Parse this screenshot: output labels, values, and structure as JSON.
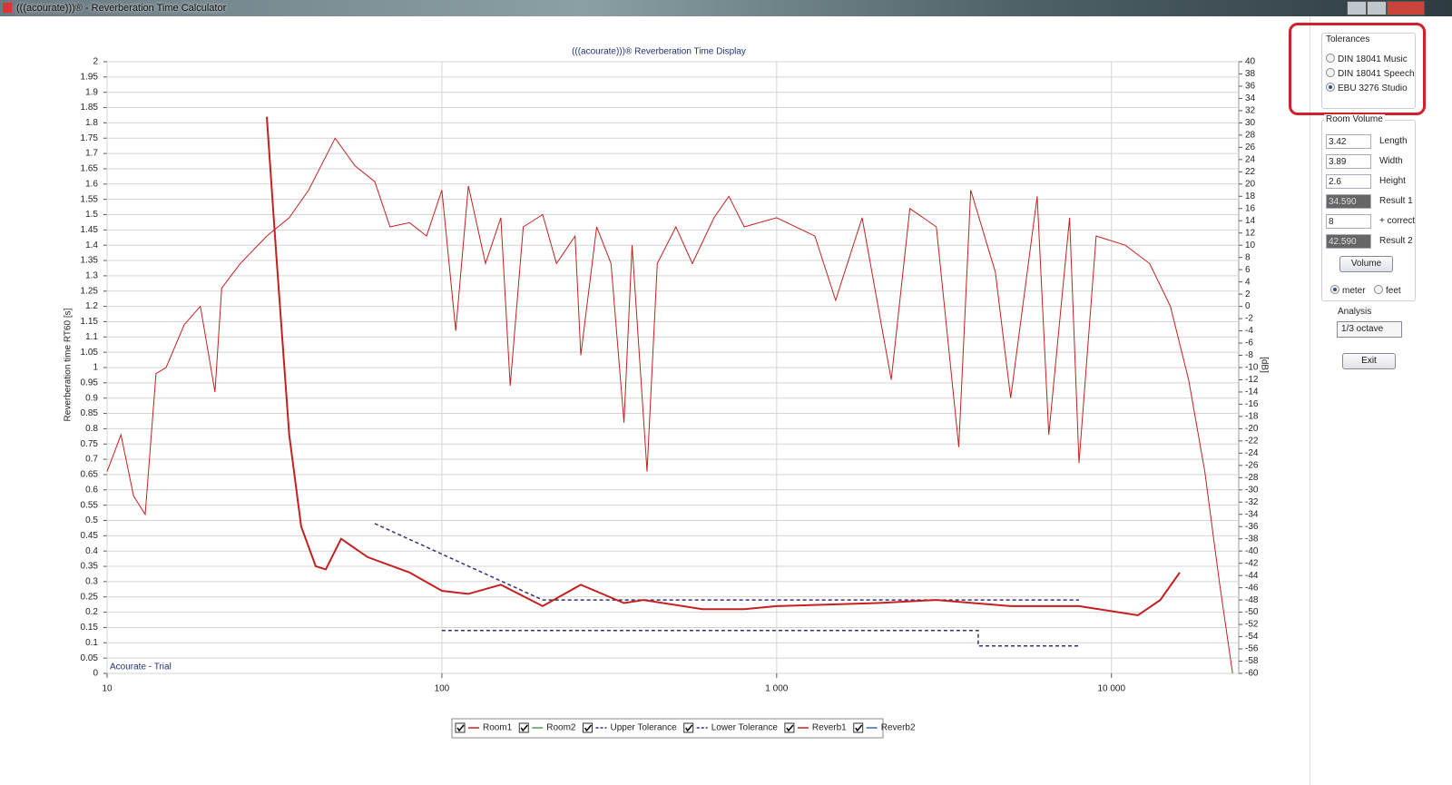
{
  "window": {
    "title": "(((acourate)))® - Reverberation Time Calculator"
  },
  "chart_data": {
    "type": "line",
    "title": "(((acourate)))® Reverberation Time Display",
    "y_label": "Reverberation time RT60 [s]",
    "y2_label": "[dB]",
    "annotation": "Acourate - Trial",
    "x_log": true,
    "grid": true,
    "xlim": [
      10,
      24000
    ],
    "xticks": [
      10,
      100,
      {
        "value": 1000,
        "label": "1 000"
      },
      {
        "value": 10000,
        "label": "10 000"
      }
    ],
    "ylim": [
      0,
      2
    ],
    "yticks": [
      0,
      0.05,
      0.1,
      0.15,
      0.2,
      0.25,
      0.3,
      0.35,
      0.4,
      0.45,
      0.5,
      0.55,
      0.6,
      0.65,
      0.7,
      0.75,
      0.8,
      0.85,
      0.9,
      0.95,
      1,
      1.05,
      1.1,
      1.15,
      1.2,
      1.25,
      1.3,
      1.35,
      1.4,
      1.45,
      1.5,
      1.55,
      1.6,
      1.65,
      1.7,
      1.75,
      1.8,
      1.85,
      1.9,
      1.95,
      2
    ],
    "y2lim": [
      -60,
      40
    ],
    "y2ticks": [
      -60,
      -58,
      -56,
      -54,
      -52,
      -50,
      -48,
      -46,
      -44,
      -42,
      -40,
      -38,
      -36,
      -34,
      -32,
      -30,
      -28,
      -26,
      -24,
      -22,
      -20,
      -18,
      -16,
      -14,
      -12,
      -10,
      -8,
      -6,
      -4,
      -2,
      0,
      2,
      4,
      6,
      8,
      10,
      12,
      14,
      16,
      18,
      20,
      22,
      24,
      26,
      28,
      30,
      32,
      34,
      36,
      38,
      40
    ],
    "series": [
      {
        "name": "Room1",
        "color": "#c42020",
        "width": 1,
        "dash": false,
        "axis": "y2",
        "x": [
          10,
          11,
          12,
          13,
          14,
          15,
          17,
          19,
          21,
          22,
          25,
          30,
          35,
          40,
          48,
          55,
          63,
          70,
          80,
          90,
          100,
          110,
          120,
          135,
          150,
          160,
          175,
          200,
          220,
          250,
          260,
          290,
          320,
          350,
          370,
          410,
          440,
          500,
          560,
          650,
          720,
          800,
          1000,
          1300,
          1500,
          1800,
          2200,
          2500,
          3000,
          3500,
          3800,
          4500,
          5000,
          6000,
          6500,
          7500,
          8000,
          9000,
          11000,
          13000,
          15000,
          17000,
          19000,
          21000,
          23000
        ],
        "values": [
          -27,
          -21,
          -31,
          -34,
          -11,
          -10,
          -3,
          0,
          -14,
          3,
          7,
          11.5,
          14.5,
          19,
          27.5,
          23,
          20.4,
          13,
          13.7,
          11.5,
          19,
          -4,
          19.7,
          7,
          14.5,
          -13,
          13,
          15,
          7,
          11.5,
          -8,
          13,
          7,
          -19,
          10,
          -27,
          7,
          13,
          7,
          14.5,
          18,
          13,
          14.5,
          11.5,
          1,
          14.5,
          -12,
          16,
          13,
          -23,
          19,
          5.6,
          -15,
          18,
          -21,
          14.5,
          -25.6,
          11.5,
          10,
          7,
          0,
          -12,
          -27,
          -45,
          -60
        ]
      },
      {
        "name": "Room2",
        "color": "#5a9a5a",
        "width": 1,
        "dash": false,
        "axis": "y2",
        "x": [],
        "values": []
      },
      {
        "name": "Upper Tolerance",
        "color": "#33307a",
        "width": 1.5,
        "dash": true,
        "x": [
          63,
          200,
          8000
        ],
        "values": [
          0.49,
          0.24,
          0.24
        ]
      },
      {
        "name": "Lower Tolerance",
        "color": "#33307a",
        "width": 1.5,
        "dash": true,
        "x": [
          100,
          4000,
          4000,
          8000
        ],
        "values": [
          0.14,
          0.14,
          0.09,
          0.09
        ]
      },
      {
        "name": "Reverb1",
        "color": "#c42020",
        "width": 2,
        "dash": false,
        "x": [
          30,
          32,
          35,
          38,
          42,
          45,
          50,
          60,
          80,
          100,
          120,
          150,
          200,
          260,
          350,
          400,
          600,
          800,
          1000,
          2000,
          3000,
          5000,
          8000,
          12000,
          14000,
          16000
        ],
        "values": [
          1.82,
          1.37,
          0.78,
          0.48,
          0.35,
          0.34,
          0.44,
          0.38,
          0.33,
          0.27,
          0.26,
          0.29,
          0.22,
          0.29,
          0.23,
          0.24,
          0.21,
          0.21,
          0.22,
          0.23,
          0.24,
          0.22,
          0.22,
          0.19,
          0.24,
          0.33
        ]
      },
      {
        "name": "Reverb2",
        "color": "#3a6aaa",
        "width": 1,
        "dash": false,
        "x": [],
        "values": []
      }
    ]
  },
  "panel": {
    "tolerances": {
      "title": "Tolerances",
      "options": [
        "DIN 18041 Music",
        "DIN 18041 Speech",
        "EBU 3276 Studio"
      ],
      "selected": 2
    },
    "room_volume": {
      "title": "Room Volume",
      "fields": [
        {
          "value": "3.42",
          "label": "Length",
          "result": false
        },
        {
          "value": "3.89",
          "label": "Width",
          "result": false
        },
        {
          "value": "2.6",
          "label": "Height",
          "result": false
        },
        {
          "value": "34.590",
          "label": "Result 1",
          "result": true
        },
        {
          "value": "8",
          "label": "+ correct",
          "result": false
        },
        {
          "value": "42.590",
          "label": "Result 2",
          "result": true
        }
      ],
      "button": "Volume",
      "units": [
        "meter",
        "feet"
      ],
      "unit_selected": 0
    },
    "analysis": {
      "title": "Analysis",
      "value": "1/3 octave"
    },
    "exit": "Exit"
  }
}
